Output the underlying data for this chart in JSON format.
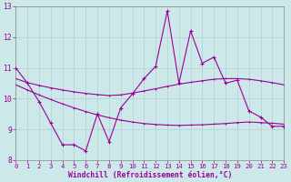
{
  "xlabel": "Windchill (Refroidissement éolien,°C)",
  "bg_color": "#cce8e8",
  "line_color": "#990099",
  "x": [
    0,
    1,
    2,
    3,
    4,
    5,
    6,
    7,
    8,
    9,
    10,
    11,
    12,
    13,
    14,
    15,
    16,
    17,
    18,
    19,
    20,
    21,
    22,
    23
  ],
  "y_main": [
    11.0,
    10.5,
    9.9,
    9.2,
    8.5,
    8.5,
    8.3,
    9.5,
    8.6,
    9.7,
    10.15,
    10.65,
    11.05,
    12.85,
    10.5,
    12.2,
    11.15,
    11.35,
    10.5,
    10.6,
    9.6,
    9.4,
    9.1,
    9.1
  ],
  "y_upper": [
    10.65,
    10.52,
    10.43,
    10.35,
    10.28,
    10.22,
    10.17,
    10.13,
    10.1,
    10.12,
    10.18,
    10.25,
    10.32,
    10.4,
    10.47,
    10.53,
    10.58,
    10.63,
    10.65,
    10.65,
    10.63,
    10.58,
    10.52,
    10.45
  ],
  "y_lower": [
    10.45,
    10.28,
    10.12,
    9.97,
    9.83,
    9.7,
    9.58,
    9.47,
    9.38,
    9.3,
    9.24,
    9.19,
    9.16,
    9.14,
    9.13,
    9.14,
    9.15,
    9.17,
    9.19,
    9.22,
    9.24,
    9.22,
    9.2,
    9.17
  ],
  "ylim": [
    8,
    13
  ],
  "yticks": [
    8,
    9,
    10,
    11,
    12,
    13
  ],
  "xlim": [
    0,
    23
  ],
  "xticks": [
    0,
    1,
    2,
    3,
    4,
    5,
    6,
    7,
    8,
    9,
    10,
    11,
    12,
    13,
    14,
    15,
    16,
    17,
    18,
    19,
    20,
    21,
    22,
    23
  ]
}
